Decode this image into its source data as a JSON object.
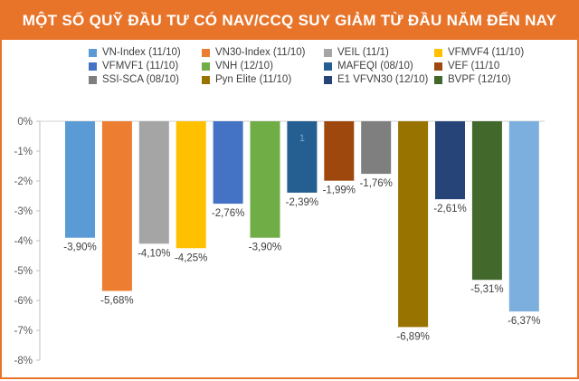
{
  "chart_data": {
    "type": "bar",
    "title": "MỘT SỐ QUỸ ĐẦU TƯ CÓ NAV/CCQ SUY GIẢM TỪ ĐẦU NĂM ĐẾN NAY",
    "xlabel": "",
    "ylabel": "",
    "ylim": [
      -8,
      0
    ],
    "yticks": [
      {
        "value": 0,
        "label": "0%"
      },
      {
        "value": -1,
        "label": "-1%"
      },
      {
        "value": -2,
        "label": "-2%"
      },
      {
        "value": -3,
        "label": "-3%"
      },
      {
        "value": -4,
        "label": "-4%"
      },
      {
        "value": -5,
        "label": "-5%"
      },
      {
        "value": -6,
        "label": "-6%"
      },
      {
        "value": -7,
        "label": "-7%"
      },
      {
        "value": -8,
        "label": "-8%"
      }
    ],
    "grid": false,
    "legend_position": "top",
    "bars": [
      {
        "name": "VN-Index (11/10)",
        "value": -3.9,
        "label": "-3,90%",
        "color": "#5b9bd5"
      },
      {
        "name": "VN30-Index (11/10)",
        "value": -5.68,
        "label": "-5,68%",
        "color": "#ed7d31"
      },
      {
        "name": "VEIL (11/1)",
        "value": -4.1,
        "label": "-4,10%",
        "color": "#a5a5a5"
      },
      {
        "name": "VFMVF4 (11/10)",
        "value": -4.25,
        "label": "-4,25%",
        "color": "#ffc000"
      },
      {
        "name": "VFMVF1 (11/10)",
        "value": -2.76,
        "label": "-2,76%",
        "color": "#4472c4"
      },
      {
        "name": "VNH (12/10)",
        "value": -3.9,
        "label": "-3,90%",
        "color": "#70ad47"
      },
      {
        "name": "MAFEQI (08/10)",
        "value": -2.39,
        "label": "-2,39%",
        "color": "#255e91"
      },
      {
        "name": "VEF (11/10",
        "value": -1.99,
        "label": "-1,99%",
        "color": "#9e480e"
      },
      {
        "name": "SSI-SCA (08/10)",
        "value": -1.76,
        "label": "-1,76%",
        "color": "#7f7f7f"
      },
      {
        "name": "Pyn Elite (11/10)",
        "value": -6.89,
        "label": "-6,89%",
        "color": "#997300"
      },
      {
        "name": "E1 VFVN30 (12/10)",
        "value": -2.61,
        "label": "-2,61%",
        "color": "#264478"
      },
      {
        "name": "BVPF (12/10)",
        "value": -5.31,
        "label": "-5,31%",
        "color": "#43682b"
      },
      {
        "name": "",
        "value": -6.37,
        "label": "-6,37%",
        "color": "#7cafdd"
      }
    ],
    "annotations": [
      {
        "text": "1",
        "bar_index": 6
      }
    ]
  }
}
